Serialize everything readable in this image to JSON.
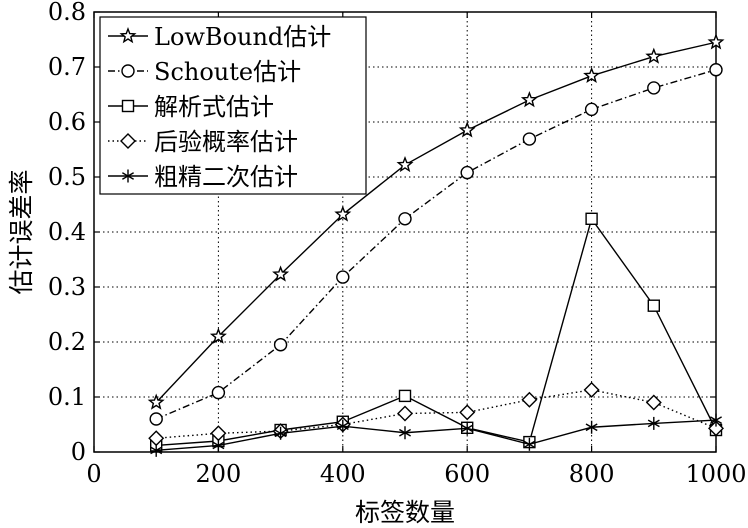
{
  "chart_data": {
    "type": "line",
    "xlabel": "标签数量",
    "ylabel": "估计误差率",
    "xlim": [
      0,
      1000
    ],
    "ylim": [
      0,
      0.8
    ],
    "xticks": [
      0,
      200,
      400,
      600,
      800,
      1000
    ],
    "yticks": [
      0,
      0.1,
      0.2,
      0.3,
      0.4,
      0.5,
      0.6,
      0.7,
      0.8
    ],
    "xtick_labels": [
      "0",
      "200",
      "400",
      "600",
      "800",
      "1000"
    ],
    "ytick_labels": [
      "0",
      "0.1",
      "0.2",
      "0.3",
      "0.4",
      "0.5",
      "0.6",
      "0.7",
      "0.8"
    ],
    "grid": true,
    "grid_style": "dotted",
    "legend_position": "top-left",
    "x": [
      100,
      200,
      300,
      400,
      500,
      600,
      700,
      800,
      900,
      1000
    ],
    "series": [
      {
        "name": "LowBound估计",
        "marker": "star",
        "line": "solid",
        "values": [
          0.09,
          0.21,
          0.323,
          0.432,
          0.522,
          0.585,
          0.64,
          0.684,
          0.719,
          0.745
        ]
      },
      {
        "name": "Schoute估计",
        "marker": "circle",
        "line": "dashdot",
        "values": [
          0.06,
          0.108,
          0.195,
          0.318,
          0.424,
          0.508,
          0.569,
          0.623,
          0.662,
          0.695
        ]
      },
      {
        "name": "解析式估计",
        "marker": "square",
        "line": "solid",
        "values": [
          0.012,
          0.02,
          0.04,
          0.055,
          0.102,
          0.044,
          0.018,
          0.424,
          0.266,
          0.04
        ]
      },
      {
        "name": "后验概率估计",
        "marker": "diamond",
        "line": "dotted",
        "values": [
          0.025,
          0.034,
          0.038,
          0.05,
          0.07,
          0.072,
          0.095,
          0.113,
          0.09,
          0.043
        ]
      },
      {
        "name": "粗精二次估计",
        "marker": "asterisk",
        "line": "solid",
        "values": [
          0.003,
          0.012,
          0.034,
          0.047,
          0.035,
          0.043,
          0.014,
          0.045,
          0.052,
          0.058
        ]
      }
    ]
  }
}
